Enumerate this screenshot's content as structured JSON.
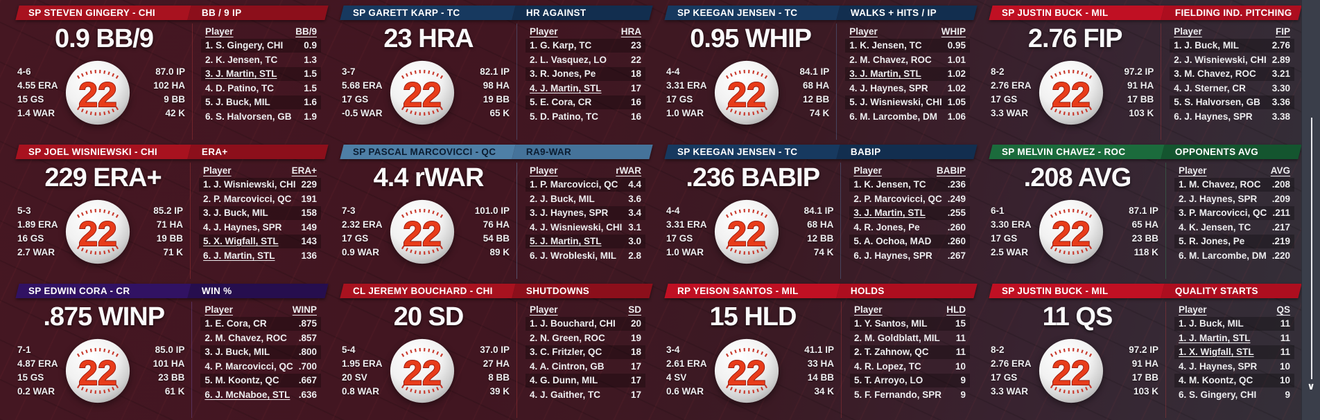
{
  "scrollbar": {
    "down_glyph": "∨"
  },
  "panels": [
    {
      "player_header": "SP STEVEN GINGERY - CHI",
      "category_header": "BB / 9 IP",
      "big_stat": "0.9 BB/9",
      "ball_number": "22",
      "left_stats": [
        "4-6",
        "4.55 ERA",
        "15 GS",
        "1.4 WAR"
      ],
      "right_stats": [
        "87.0 IP",
        "102 HA",
        "9 BB",
        "42 K"
      ],
      "colors": {
        "header_left_bg": "#A8121F",
        "header_right_bg": "#8C0F1B",
        "header_fg": "#FFFFFF",
        "divider": "rgba(200,60,60,0.35)"
      },
      "board": {
        "player_col": "Player",
        "stat_col": "BB/9",
        "rows": [
          {
            "name": "1. S. Gingery, CHI",
            "value": "0.9",
            "highlight": false
          },
          {
            "name": "2. K. Jensen, TC",
            "value": "1.3",
            "highlight": false
          },
          {
            "name": "3. J. Martin, STL",
            "value": "1.5",
            "highlight": true
          },
          {
            "name": "4. D. Patino, TC",
            "value": "1.5",
            "highlight": false
          },
          {
            "name": "5. J. Buck, MIL",
            "value": "1.6",
            "highlight": false
          },
          {
            "name": "6. S. Halvorsen, GB",
            "value": "1.9",
            "highlight": false
          }
        ]
      }
    },
    {
      "player_header": "SP GARETT KARP - TC",
      "category_header": "HR AGAINST",
      "big_stat": "23 HRA",
      "ball_number": "22",
      "left_stats": [
        "3-7",
        "5.68 ERA",
        "17 GS",
        "-0.5 WAR"
      ],
      "right_stats": [
        "82.1 IP",
        "98 HA",
        "19 BB",
        "65 K"
      ],
      "colors": {
        "header_left_bg": "#17395F",
        "header_right_bg": "#122E4F",
        "header_fg": "#FFFFFF",
        "divider": "rgba(90,130,180,0.4)"
      },
      "board": {
        "player_col": "Player",
        "stat_col": "HRA",
        "rows": [
          {
            "name": "1. G. Karp, TC",
            "value": "23",
            "highlight": false
          },
          {
            "name": "2. L. Vasquez, LO",
            "value": "22",
            "highlight": false
          },
          {
            "name": "3. R. Jones, Pe",
            "value": "18",
            "highlight": false
          },
          {
            "name": "4. J. Martin, STL",
            "value": "17",
            "highlight": true
          },
          {
            "name": "5. E. Cora, CR",
            "value": "16",
            "highlight": false
          },
          {
            "name": "5. D. Patino, TC",
            "value": "16",
            "highlight": false
          }
        ]
      }
    },
    {
      "player_header": "SP KEEGAN JENSEN - TC",
      "category_header": "WALKS + HITS / IP",
      "big_stat": "0.95 WHIP",
      "ball_number": "22",
      "left_stats": [
        "4-4",
        "3.31 ERA",
        "17 GS",
        "1.0 WAR"
      ],
      "right_stats": [
        "84.1 IP",
        "68 HA",
        "12 BB",
        "74 K"
      ],
      "colors": {
        "header_left_bg": "#17395F",
        "header_right_bg": "#122E4F",
        "header_fg": "#FFFFFF",
        "divider": "rgba(90,130,180,0.4)"
      },
      "board": {
        "player_col": "Player",
        "stat_col": "WHIP",
        "rows": [
          {
            "name": "1. K. Jensen, TC",
            "value": "0.95",
            "highlight": false
          },
          {
            "name": "2. M. Chavez, ROC",
            "value": "1.01",
            "highlight": false
          },
          {
            "name": "3. J. Martin, STL",
            "value": "1.02",
            "highlight": true
          },
          {
            "name": "4. J. Haynes, SPR",
            "value": "1.02",
            "highlight": false
          },
          {
            "name": "5. J. Wisniewski, CHI",
            "value": "1.05",
            "highlight": false
          },
          {
            "name": "6. M. Larcombe, DM",
            "value": "1.06",
            "highlight": false
          }
        ]
      }
    },
    {
      "player_header": "SP JUSTIN BUCK - MIL",
      "category_header": "FIELDING IND. PITCHING",
      "big_stat": "2.76 FIP",
      "ball_number": "22",
      "left_stats": [
        "8-2",
        "2.76 ERA",
        "17 GS",
        "3.3 WAR"
      ],
      "right_stats": [
        "97.2 IP",
        "91 HA",
        "17 BB",
        "103 K"
      ],
      "colors": {
        "header_left_bg": "#C01023",
        "header_right_bg": "#AD0E1F",
        "header_fg": "#FFFFFF",
        "divider": "rgba(200,60,60,0.35)"
      },
      "board": {
        "player_col": "Player",
        "stat_col": "FIP",
        "rows": [
          {
            "name": "1. J. Buck, MIL",
            "value": "2.76",
            "highlight": false
          },
          {
            "name": "2. J. Wisniewski, CHI",
            "value": "2.89",
            "highlight": false
          },
          {
            "name": "3. M. Chavez, ROC",
            "value": "3.21",
            "highlight": false
          },
          {
            "name": "4. J. Sterner, CR",
            "value": "3.30",
            "highlight": false
          },
          {
            "name": "5. S. Halvorsen, GB",
            "value": "3.36",
            "highlight": false
          },
          {
            "name": "6. J. Haynes, SPR",
            "value": "3.38",
            "highlight": false
          }
        ]
      }
    },
    {
      "player_header": "SP JOEL WISNIEWSKI - CHI",
      "category_header": "ERA+",
      "big_stat": "229 ERA+",
      "ball_number": "22",
      "left_stats": [
        "5-3",
        "1.89 ERA",
        "16 GS",
        "2.7 WAR"
      ],
      "right_stats": [
        "85.2 IP",
        "71 HA",
        "19 BB",
        "71 K"
      ],
      "colors": {
        "header_left_bg": "#A8121F",
        "header_right_bg": "#8C0F1B",
        "header_fg": "#FFFFFF",
        "divider": "rgba(200,60,60,0.35)"
      },
      "board": {
        "player_col": "Player",
        "stat_col": "ERA+",
        "rows": [
          {
            "name": "1. J. Wisniewski, CHI",
            "value": "229",
            "highlight": false
          },
          {
            "name": "2. P. Marcovicci, QC",
            "value": "191",
            "highlight": false
          },
          {
            "name": "3. J. Buck, MIL",
            "value": "158",
            "highlight": false
          },
          {
            "name": "4. J. Haynes, SPR",
            "value": "149",
            "highlight": false
          },
          {
            "name": "5. X. Wigfall, STL",
            "value": "143",
            "highlight": true
          },
          {
            "name": "6. J. Martin, STL",
            "value": "136",
            "highlight": true
          }
        ]
      }
    },
    {
      "player_header": "SP PASCAL MARCOVICCI - QC",
      "category_header": "RA9-WAR",
      "big_stat": "4.4 rWAR",
      "ball_number": "22",
      "left_stats": [
        "7-3",
        "2.32 ERA",
        "17 GS",
        "0.9 WAR"
      ],
      "right_stats": [
        "101.0 IP",
        "76 HA",
        "54 BB",
        "89 K"
      ],
      "colors": {
        "header_left_bg": "#4E7FA6",
        "header_right_bg": "#45739A",
        "header_fg": "#0B1D32",
        "divider": "rgba(110,150,190,0.45)"
      },
      "board": {
        "player_col": "Player",
        "stat_col": "rWAR",
        "rows": [
          {
            "name": "1. P. Marcovicci, QC",
            "value": "4.4",
            "highlight": false
          },
          {
            "name": "2. J. Buck, MIL",
            "value": "3.6",
            "highlight": false
          },
          {
            "name": "3. J. Haynes, SPR",
            "value": "3.4",
            "highlight": false
          },
          {
            "name": "4. J. Wisniewski, CHI",
            "value": "3.1",
            "highlight": false
          },
          {
            "name": "5. J. Martin, STL",
            "value": "3.0",
            "highlight": true
          },
          {
            "name": "6. J. Wrobleski, MIL",
            "value": "2.8",
            "highlight": false
          }
        ]
      }
    },
    {
      "player_header": "SP KEEGAN JENSEN - TC",
      "category_header": "BABIP",
      "big_stat": ".236 BABIP",
      "ball_number": "22",
      "left_stats": [
        "4-4",
        "3.31 ERA",
        "17 GS",
        "1.0 WAR"
      ],
      "right_stats": [
        "84.1 IP",
        "68 HA",
        "12 BB",
        "74 K"
      ],
      "colors": {
        "header_left_bg": "#17395F",
        "header_right_bg": "#122E4F",
        "header_fg": "#FFFFFF",
        "divider": "rgba(90,130,180,0.4)"
      },
      "board": {
        "player_col": "Player",
        "stat_col": "BABIP",
        "rows": [
          {
            "name": "1. K. Jensen, TC",
            "value": ".236",
            "highlight": false
          },
          {
            "name": "2. P. Marcovicci, QC",
            "value": ".249",
            "highlight": false
          },
          {
            "name": "3. J. Martin, STL",
            "value": ".255",
            "highlight": true
          },
          {
            "name": "4. R. Jones, Pe",
            "value": ".260",
            "highlight": false
          },
          {
            "name": "5. A. Ochoa, MAD",
            "value": ".260",
            "highlight": false
          },
          {
            "name": "6. J. Haynes, SPR",
            "value": ".267",
            "highlight": false
          }
        ]
      }
    },
    {
      "player_header": "SP MELVIN CHAVEZ - ROC",
      "category_header": "OPPONENTS AVG",
      "big_stat": ".208 AVG",
      "ball_number": "22",
      "left_stats": [
        "6-1",
        "3.30 ERA",
        "17 GS",
        "2.5 WAR"
      ],
      "right_stats": [
        "87.1 IP",
        "65 HA",
        "23 BB",
        "118 K"
      ],
      "colors": {
        "header_left_bg": "#1B6B3C",
        "header_right_bg": "#14552F",
        "header_fg": "#FFFFFF",
        "divider": "rgba(60,140,90,0.4)"
      },
      "board": {
        "player_col": "Player",
        "stat_col": "AVG",
        "rows": [
          {
            "name": "1. M. Chavez, ROC",
            "value": ".208",
            "highlight": false
          },
          {
            "name": "2. J. Haynes, SPR",
            "value": ".209",
            "highlight": false
          },
          {
            "name": "3. P. Marcovicci, QC",
            "value": ".211",
            "highlight": false
          },
          {
            "name": "4. K. Jensen, TC",
            "value": ".217",
            "highlight": false
          },
          {
            "name": "5. R. Jones, Pe",
            "value": ".219",
            "highlight": false
          },
          {
            "name": "6. M. Larcombe, DM",
            "value": ".220",
            "highlight": false
          }
        ]
      }
    },
    {
      "player_header": "SP EDWIN CORA - CR",
      "category_header": "WIN %",
      "big_stat": ".875 WINP",
      "ball_number": "22",
      "left_stats": [
        "7-1",
        "4.87 ERA",
        "15 GS",
        "0.2 WAR"
      ],
      "right_stats": [
        "85.0 IP",
        "101 HA",
        "23 BB",
        "61 K"
      ],
      "colors": {
        "header_left_bg": "#311263",
        "header_right_bg": "#260E4E",
        "header_fg": "#FFFFFF",
        "divider": "rgba(120,90,180,0.4)"
      },
      "board": {
        "player_col": "Player",
        "stat_col": "WINP",
        "rows": [
          {
            "name": "1. E. Cora, CR",
            "value": ".875",
            "highlight": false
          },
          {
            "name": "2. M. Chavez, ROC",
            "value": ".857",
            "highlight": false
          },
          {
            "name": "3. J. Buck, MIL",
            "value": ".800",
            "highlight": false
          },
          {
            "name": "4. P. Marcovicci, QC",
            "value": ".700",
            "highlight": false
          },
          {
            "name": "5. M. Koontz, QC",
            "value": ".667",
            "highlight": false
          },
          {
            "name": "6. J. McNaboe, STL",
            "value": ".636",
            "highlight": true
          }
        ]
      }
    },
    {
      "player_header": "CL JEREMY BOUCHARD - CHI",
      "category_header": "SHUTDOWNS",
      "big_stat": "20 SD",
      "ball_number": "22",
      "left_stats": [
        "5-4",
        "1.95 ERA",
        "20 SV",
        "0.8 WAR"
      ],
      "right_stats": [
        "37.0 IP",
        "27 HA",
        "8 BB",
        "39 K"
      ],
      "colors": {
        "header_left_bg": "#A8121F",
        "header_right_bg": "#8C0F1B",
        "header_fg": "#FFFFFF",
        "divider": "rgba(200,60,60,0.35)"
      },
      "board": {
        "player_col": "Player",
        "stat_col": "SD",
        "rows": [
          {
            "name": "1. J. Bouchard, CHI",
            "value": "20",
            "highlight": false
          },
          {
            "name": "2. N. Green, ROC",
            "value": "19",
            "highlight": false
          },
          {
            "name": "3. C. Fritzler, QC",
            "value": "18",
            "highlight": false
          },
          {
            "name": "4. A. Cintron, GB",
            "value": "17",
            "highlight": false
          },
          {
            "name": "4. G. Dunn, MIL",
            "value": "17",
            "highlight": false
          },
          {
            "name": "4. J. Gaither, TC",
            "value": "17",
            "highlight": false
          }
        ]
      }
    },
    {
      "player_header": "RP YEISON SANTOS - MIL",
      "category_header": "HOLDS",
      "big_stat": "15 HLD",
      "ball_number": "22",
      "left_stats": [
        "3-4",
        "2.61 ERA",
        "4 SV",
        "0.6 WAR"
      ],
      "right_stats": [
        "41.1 IP",
        "33 HA",
        "14 BB",
        "34 K"
      ],
      "colors": {
        "header_left_bg": "#C01023",
        "header_right_bg": "#AD0E1F",
        "header_fg": "#FFFFFF",
        "divider": "rgba(200,60,60,0.35)"
      },
      "board": {
        "player_col": "Player",
        "stat_col": "HLD",
        "rows": [
          {
            "name": "1. Y. Santos, MIL",
            "value": "15",
            "highlight": false
          },
          {
            "name": "2. M. Goldblatt, MIL",
            "value": "11",
            "highlight": false
          },
          {
            "name": "2. T. Zahnow, QC",
            "value": "11",
            "highlight": false
          },
          {
            "name": "4. R. Lopez, TC",
            "value": "10",
            "highlight": false
          },
          {
            "name": "5. T. Arroyo, LO",
            "value": "9",
            "highlight": false
          },
          {
            "name": "5. F. Fernando, SPR",
            "value": "9",
            "highlight": false
          }
        ]
      }
    },
    {
      "player_header": "SP JUSTIN BUCK - MIL",
      "category_header": "QUALITY STARTS",
      "big_stat": "11 QS",
      "ball_number": "22",
      "left_stats": [
        "8-2",
        "2.76 ERA",
        "17 GS",
        "3.3 WAR"
      ],
      "right_stats": [
        "97.2 IP",
        "91 HA",
        "17 BB",
        "103 K"
      ],
      "colors": {
        "header_left_bg": "#C01023",
        "header_right_bg": "#AD0E1F",
        "header_fg": "#FFFFFF",
        "divider": "rgba(200,60,60,0.35)"
      },
      "board": {
        "player_col": "Player",
        "stat_col": "QS",
        "rows": [
          {
            "name": "1. J. Buck, MIL",
            "value": "11",
            "highlight": false
          },
          {
            "name": "1. J. Martin, STL",
            "value": "11",
            "highlight": true
          },
          {
            "name": "1. X. Wigfall, STL",
            "value": "11",
            "highlight": true
          },
          {
            "name": "4. J. Haynes, SPR",
            "value": "10",
            "highlight": false
          },
          {
            "name": "4. M. Koontz, QC",
            "value": "10",
            "highlight": false
          },
          {
            "name": "6. S. Gingery, CHI",
            "value": "9",
            "highlight": false
          }
        ]
      }
    }
  ]
}
